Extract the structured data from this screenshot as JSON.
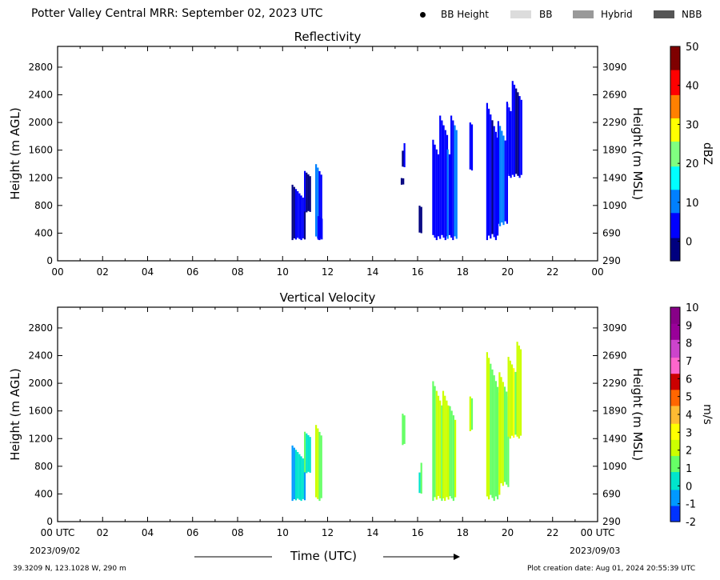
{
  "header": {
    "title": "Potter Valley Central MRR:  September 02, 2023 UTC",
    "legend": [
      {
        "label": "BB Height",
        "kind": "dot",
        "color": "#000000"
      },
      {
        "label": "BB",
        "kind": "box",
        "color": "#dcdcdc"
      },
      {
        "label": "Hybrid",
        "kind": "box",
        "color": "#999999"
      },
      {
        "label": "NBB",
        "kind": "box",
        "color": "#555555"
      }
    ]
  },
  "footer": {
    "location": "39.3209 N, 123.1028 W, 290 m",
    "created": "Plot creation date: Aug 01, 2024 20:55:39 UTC",
    "xlabel": "Time (UTC)",
    "start_date": "2023/09/02",
    "end_date": "2023/09/03"
  },
  "chart_data": [
    {
      "type": "heatmap",
      "title": "Reflectivity",
      "ylabel": "Height (m AGL)",
      "ylabel_right": "Height (m MSL)",
      "x_ticks": [
        "00",
        "02",
        "04",
        "06",
        "08",
        "10",
        "12",
        "14",
        "16",
        "18",
        "20",
        "22",
        "00"
      ],
      "y_ticks": [
        0,
        400,
        800,
        1200,
        1600,
        2000,
        2400,
        2800
      ],
      "y_ticks_right": [
        290,
        690,
        1090,
        1490,
        1890,
        2290,
        2690,
        3090
      ],
      "xlim": [
        0,
        24
      ],
      "ylim": [
        0,
        3100
      ],
      "colorbar": {
        "label": "dBZ",
        "range": [
          -5,
          50
        ],
        "ticks": [
          0,
          10,
          20,
          30,
          40,
          50
        ],
        "colors": [
          "#00007f",
          "#0000ff",
          "#0080ff",
          "#00ffff",
          "#80ff80",
          "#ffff00",
          "#ff8000",
          "#ff0000",
          "#7f0000"
        ]
      },
      "cells": [
        {
          "t0": 10.4,
          "t1": 10.95,
          "h0": 300,
          "h1": 1100,
          "v": 2
        },
        {
          "t0": 10.95,
          "t1": 11.2,
          "h0": 700,
          "h1": 1350,
          "v": 1
        },
        {
          "t0": 11.45,
          "t1": 11.75,
          "h0": 300,
          "h1": 1600,
          "v": 6
        },
        {
          "t0": 11.55,
          "t1": 11.75,
          "h0": 300,
          "h1": 750,
          "v": 3
        },
        {
          "t0": 15.3,
          "t1": 15.4,
          "h0": 1350,
          "h1": 1700,
          "v": 1
        },
        {
          "t0": 15.25,
          "t1": 15.35,
          "h0": 1100,
          "h1": 1200,
          "v": 1
        },
        {
          "t0": 16.05,
          "t1": 16.15,
          "h0": 400,
          "h1": 850,
          "v": 1
        },
        {
          "t0": 16.65,
          "t1": 17.35,
          "h0": 300,
          "h1": 2100,
          "v": 4
        },
        {
          "t0": 17.3,
          "t1": 17.7,
          "h0": 300,
          "h1": 2100,
          "v": 8
        },
        {
          "t0": 18.3,
          "t1": 18.45,
          "h0": 1300,
          "h1": 2000,
          "v": 2
        },
        {
          "t0": 19.05,
          "t1": 19.55,
          "h0": 300,
          "h1": 2450,
          "v": 3
        },
        {
          "t0": 19.55,
          "t1": 19.95,
          "h0": 500,
          "h1": 2300,
          "v": 7
        },
        {
          "t0": 19.95,
          "t1": 20.6,
          "h0": 1200,
          "h1": 2600,
          "v": 2
        }
      ]
    },
    {
      "type": "heatmap",
      "title": "Vertical Velocity",
      "ylabel": "Height (m AGL)",
      "ylabel_right": "Height (m MSL)",
      "x_ticks": [
        "00 UTC",
        "02",
        "04",
        "06",
        "08",
        "10",
        "12",
        "14",
        "16",
        "18",
        "20",
        "22",
        "00 UTC"
      ],
      "y_ticks": [
        0,
        400,
        800,
        1200,
        1600,
        2000,
        2400,
        2800
      ],
      "y_ticks_right": [
        290,
        690,
        1090,
        1490,
        1890,
        2290,
        2690,
        3090
      ],
      "xlim": [
        0,
        24
      ],
      "ylim": [
        0,
        3100
      ],
      "colorbar": {
        "label": "m/s",
        "range": [
          -2,
          10
        ],
        "ticks": [
          -2,
          -1,
          0,
          1,
          2,
          3,
          4,
          5,
          6,
          7,
          8,
          9,
          10
        ],
        "colors": [
          "#0033ff",
          "#0099ff",
          "#00e5cc",
          "#66ff66",
          "#ccff00",
          "#ffff00",
          "#ffbb33",
          "#ff6600",
          "#cc0000",
          "#ff66cc",
          "#cc44cc",
          "#990099",
          "#880088"
        ]
      },
      "cells": [
        {
          "t0": 10.4,
          "t1": 10.95,
          "h0": 300,
          "h1": 1100,
          "v": 0.2
        },
        {
          "t0": 10.95,
          "t1": 11.2,
          "h0": 700,
          "h1": 1350,
          "v": 0.8
        },
        {
          "t0": 11.45,
          "t1": 11.75,
          "h0": 300,
          "h1": 1600,
          "v": 1.6
        },
        {
          "t0": 15.3,
          "t1": 15.4,
          "h0": 1100,
          "h1": 1700,
          "v": 0.6
        },
        {
          "t0": 16.05,
          "t1": 16.15,
          "h0": 400,
          "h1": 850,
          "v": 0.7
        },
        {
          "t0": 16.65,
          "t1": 17.1,
          "h0": 300,
          "h1": 2100,
          "v": 1.6
        },
        {
          "t0": 17.1,
          "t1": 17.4,
          "h0": 300,
          "h1": 2100,
          "v": 2.4
        },
        {
          "t0": 17.4,
          "t1": 17.7,
          "h0": 300,
          "h1": 2000,
          "v": 1.8
        },
        {
          "t0": 18.3,
          "t1": 18.45,
          "h0": 1300,
          "h1": 2000,
          "v": 1.8
        },
        {
          "t0": 19.05,
          "t1": 19.6,
          "h0": 300,
          "h1": 2450,
          "v": 1.5
        },
        {
          "t0": 19.6,
          "t1": 20.0,
          "h0": 500,
          "h1": 2300,
          "v": 1.8
        },
        {
          "t0": 20.0,
          "t1": 20.6,
          "h0": 1200,
          "h1": 2600,
          "v": 2.2
        }
      ]
    }
  ]
}
